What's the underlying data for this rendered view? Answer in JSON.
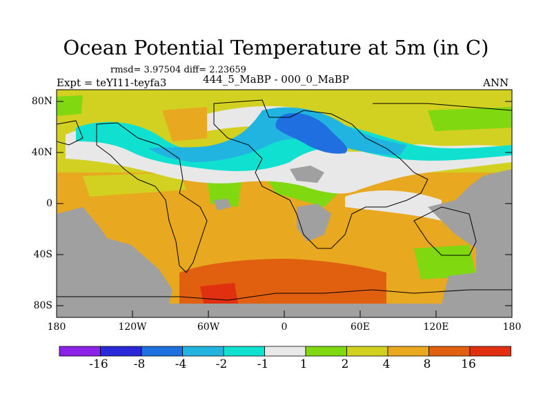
{
  "title": "Ocean Potential Temperature at 5m (in C)",
  "stats_line": "rmsd= 3.97504 diff= 2.23659",
  "subtitle": "444_5_MaBP - 000_0_MaBP",
  "experiment_label": "Expt = teYI11-teyfa3",
  "season_label": "ANN",
  "y_axis_ticks": [
    "80N",
    "40N",
    "0",
    "40S",
    "80S"
  ],
  "x_axis_ticks": [
    "180",
    "120W",
    "60W",
    "0",
    "60E",
    "120E",
    "180"
  ],
  "colorbar": {
    "labels": [
      "-16",
      "-8",
      "-4",
      "-2",
      "-1",
      "1",
      "2",
      "4",
      "8",
      "16"
    ],
    "colors": [
      "#8b22e8",
      "#2a28d8",
      "#1f6fe0",
      "#22b4e0",
      "#10e0cf",
      "#e8e8e8",
      "#80d810",
      "#d2d020",
      "#e8a820",
      "#e06010",
      "#e03010"
    ]
  },
  "colors": {
    "land_mask": "#a0a0a0",
    "no_change": "#e8e8e8"
  }
}
